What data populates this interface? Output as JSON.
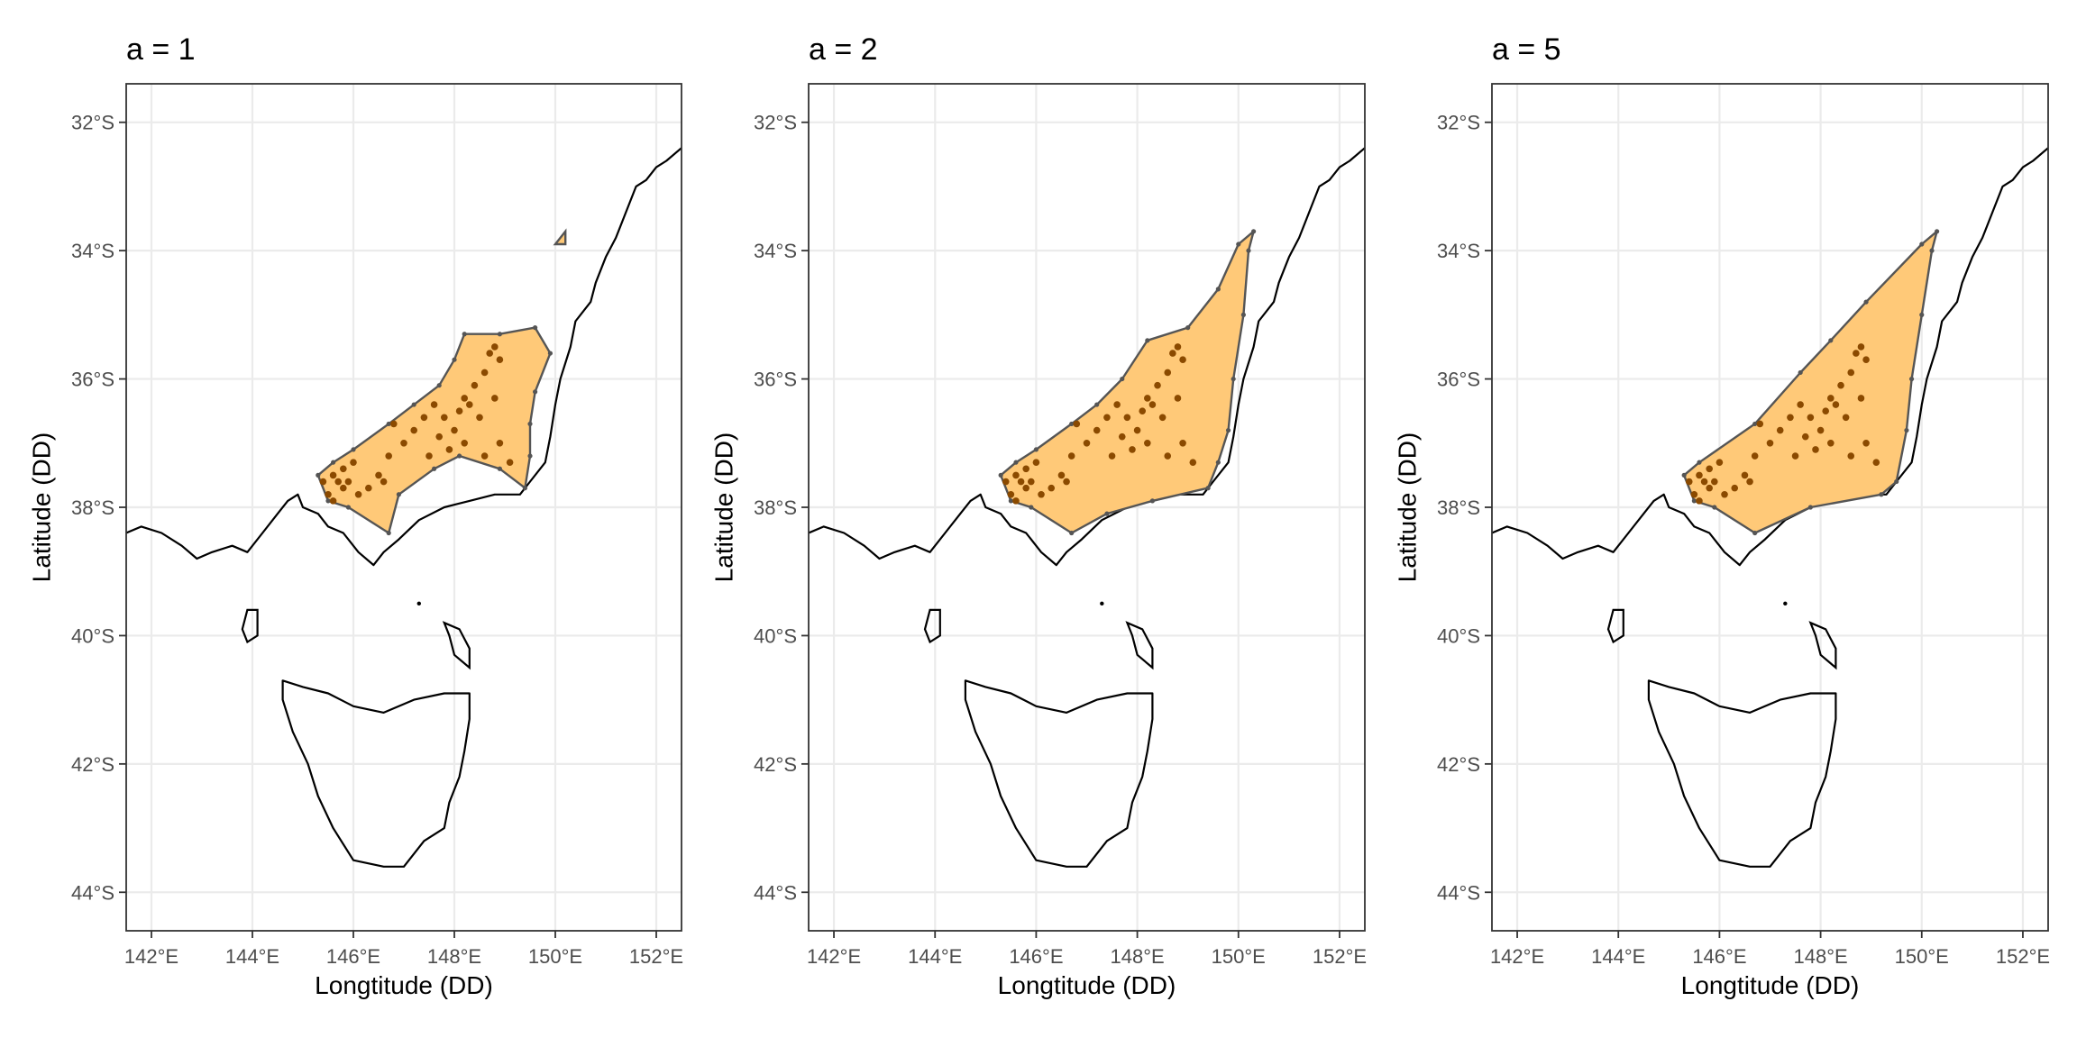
{
  "panels": [
    {
      "title": "a =  1",
      "alpha": 1,
      "ylabel": "Latitude (DD)",
      "xlabel": "Longtitude (DD)",
      "hull": [
        [
          145.3,
          -37.5
        ],
        [
          145.5,
          -37.9
        ],
        [
          145.9,
          -38.0
        ],
        [
          146.7,
          -38.4
        ],
        [
          146.9,
          -37.8
        ],
        [
          147.6,
          -37.4
        ],
        [
          148.1,
          -37.2
        ],
        [
          148.9,
          -37.4
        ],
        [
          149.4,
          -37.7
        ],
        [
          149.5,
          -37.2
        ],
        [
          149.5,
          -36.7
        ],
        [
          149.6,
          -36.2
        ],
        [
          149.9,
          -35.6
        ],
        [
          149.6,
          -35.2
        ],
        [
          148.9,
          -35.3
        ],
        [
          148.2,
          -35.3
        ],
        [
          148.0,
          -35.7
        ],
        [
          147.7,
          -36.1
        ],
        [
          147.2,
          -36.4
        ],
        [
          146.7,
          -36.7
        ],
        [
          146.0,
          -37.1
        ],
        [
          145.6,
          -37.3
        ]
      ],
      "islands": [
        [
          [
            150.0,
            -33.9
          ],
          [
            150.2,
            -33.7
          ],
          [
            150.2,
            -33.9
          ]
        ]
      ]
    },
    {
      "title": "a =  2",
      "alpha": 2,
      "ylabel": "Latitude (DD)",
      "xlabel": "Longtitude (DD)",
      "hull": [
        [
          145.3,
          -37.5
        ],
        [
          145.5,
          -37.9
        ],
        [
          145.9,
          -38.0
        ],
        [
          146.7,
          -38.4
        ],
        [
          147.4,
          -38.1
        ],
        [
          148.3,
          -37.9
        ],
        [
          149.4,
          -37.7
        ],
        [
          149.6,
          -37.3
        ],
        [
          149.8,
          -36.8
        ],
        [
          149.9,
          -36.0
        ],
        [
          150.1,
          -35.0
        ],
        [
          150.2,
          -34.0
        ],
        [
          150.3,
          -33.7
        ],
        [
          150.0,
          -33.9
        ],
        [
          149.6,
          -34.6
        ],
        [
          149.0,
          -35.2
        ],
        [
          148.2,
          -35.4
        ],
        [
          147.7,
          -36.0
        ],
        [
          147.2,
          -36.4
        ],
        [
          146.7,
          -36.7
        ],
        [
          146.0,
          -37.1
        ],
        [
          145.6,
          -37.3
        ]
      ],
      "islands": []
    },
    {
      "title": "a =  5",
      "alpha": 5,
      "ylabel": "Latitude (DD)",
      "xlabel": "Longtitude (DD)",
      "hull": [
        [
          145.3,
          -37.5
        ],
        [
          145.5,
          -37.9
        ],
        [
          145.9,
          -38.0
        ],
        [
          146.7,
          -38.4
        ],
        [
          147.8,
          -38.0
        ],
        [
          149.2,
          -37.8
        ],
        [
          149.5,
          -37.6
        ],
        [
          149.7,
          -36.8
        ],
        [
          149.8,
          -36.0
        ],
        [
          150.0,
          -35.0
        ],
        [
          150.2,
          -34.0
        ],
        [
          150.3,
          -33.7
        ],
        [
          150.0,
          -33.9
        ],
        [
          148.9,
          -34.8
        ],
        [
          148.2,
          -35.4
        ],
        [
          147.6,
          -35.9
        ],
        [
          146.7,
          -36.7
        ],
        [
          145.6,
          -37.3
        ]
      ],
      "islands": []
    }
  ],
  "axes": {
    "xlim": [
      141.5,
      152.5
    ],
    "ylim": [
      -44.6,
      -31.4
    ],
    "xticks": [
      142,
      144,
      146,
      148,
      150,
      152
    ],
    "xtick_labels": [
      "142°E",
      "144°E",
      "146°E",
      "148°E",
      "150°E",
      "152°E"
    ],
    "yticks": [
      -32,
      -34,
      -36,
      -38,
      -40,
      -42,
      -44
    ],
    "ytick_labels": [
      "32°S",
      "34°S",
      "36°S",
      "38°S",
      "40°S",
      "42°S",
      "44°S"
    ]
  },
  "colors": {
    "hull_fill": "#FFC978",
    "hull_stroke": "#555555",
    "points": "#8B4A00",
    "coast": "#000000",
    "grid": "#EBEBEB",
    "panel_border": "#333333",
    "text": "#000000",
    "tick_text": "#4D4D4D"
  },
  "map_features": {
    "mainland_coast": [
      [
        141.5,
        -38.4
      ],
      [
        141.8,
        -38.3
      ],
      [
        142.2,
        -38.4
      ],
      [
        142.6,
        -38.6
      ],
      [
        142.9,
        -38.8
      ],
      [
        143.2,
        -38.7
      ],
      [
        143.6,
        -38.6
      ],
      [
        143.9,
        -38.7
      ],
      [
        144.2,
        -38.4
      ],
      [
        144.5,
        -38.1
      ],
      [
        144.7,
        -37.9
      ],
      [
        144.9,
        -37.8
      ],
      [
        145.0,
        -38.0
      ],
      [
        145.3,
        -38.1
      ],
      [
        145.5,
        -38.3
      ],
      [
        145.8,
        -38.4
      ],
      [
        146.1,
        -38.7
      ],
      [
        146.4,
        -38.9
      ],
      [
        146.6,
        -38.7
      ],
      [
        146.9,
        -38.5
      ],
      [
        147.3,
        -38.2
      ],
      [
        147.8,
        -38.0
      ],
      [
        148.3,
        -37.9
      ],
      [
        148.8,
        -37.8
      ],
      [
        149.3,
        -37.8
      ],
      [
        149.5,
        -37.6
      ],
      [
        149.8,
        -37.3
      ],
      [
        149.9,
        -36.9
      ],
      [
        150.0,
        -36.4
      ],
      [
        150.1,
        -36.0
      ],
      [
        150.3,
        -35.5
      ],
      [
        150.4,
        -35.1
      ],
      [
        150.7,
        -34.8
      ],
      [
        150.8,
        -34.5
      ],
      [
        151.0,
        -34.1
      ],
      [
        151.2,
        -33.8
      ],
      [
        151.4,
        -33.4
      ],
      [
        151.6,
        -33.0
      ],
      [
        151.8,
        -32.9
      ],
      [
        152.0,
        -32.7
      ],
      [
        152.2,
        -32.6
      ],
      [
        152.5,
        -32.4
      ]
    ],
    "tasmania": [
      [
        144.6,
        -40.7
      ],
      [
        145.0,
        -40.8
      ],
      [
        145.5,
        -40.9
      ],
      [
        146.0,
        -41.1
      ],
      [
        146.6,
        -41.2
      ],
      [
        147.2,
        -41.0
      ],
      [
        147.8,
        -40.9
      ],
      [
        148.3,
        -40.9
      ],
      [
        148.3,
        -41.3
      ],
      [
        148.2,
        -41.8
      ],
      [
        148.1,
        -42.2
      ],
      [
        147.9,
        -42.6
      ],
      [
        147.8,
        -43.0
      ],
      [
        147.4,
        -43.2
      ],
      [
        147.0,
        -43.6
      ],
      [
        146.6,
        -43.6
      ],
      [
        146.0,
        -43.5
      ],
      [
        145.6,
        -43.0
      ],
      [
        145.3,
        -42.5
      ],
      [
        145.1,
        -42.0
      ],
      [
        144.8,
        -41.5
      ],
      [
        144.6,
        -41.0
      ]
    ],
    "king_island": [
      [
        143.9,
        -39.6
      ],
      [
        144.1,
        -39.6
      ],
      [
        144.1,
        -40.0
      ],
      [
        143.9,
        -40.1
      ],
      [
        143.8,
        -39.9
      ]
    ],
    "flinders_island": [
      [
        147.8,
        -39.8
      ],
      [
        148.1,
        -39.9
      ],
      [
        148.3,
        -40.2
      ],
      [
        148.3,
        -40.5
      ],
      [
        148.0,
        -40.3
      ],
      [
        147.9,
        -40.0
      ]
    ],
    "small_islet": [
      [
        147.3,
        -39.5
      ]
    ]
  },
  "occurrences": [
    [
      145.4,
      -37.6
    ],
    [
      145.5,
      -37.8
    ],
    [
      145.6,
      -37.5
    ],
    [
      145.7,
      -37.6
    ],
    [
      145.8,
      -37.7
    ],
    [
      145.9,
      -37.6
    ],
    [
      145.6,
      -37.9
    ],
    [
      145.8,
      -37.4
    ],
    [
      146.0,
      -37.3
    ],
    [
      146.1,
      -37.8
    ],
    [
      146.3,
      -37.7
    ],
    [
      146.5,
      -37.5
    ],
    [
      146.7,
      -37.2
    ],
    [
      146.8,
      -36.7
    ],
    [
      147.0,
      -37.0
    ],
    [
      147.2,
      -36.8
    ],
    [
      147.4,
      -36.6
    ],
    [
      147.5,
      -37.2
    ],
    [
      147.7,
      -36.9
    ],
    [
      147.8,
      -36.6
    ],
    [
      147.9,
      -37.1
    ],
    [
      148.0,
      -36.8
    ],
    [
      148.1,
      -36.5
    ],
    [
      148.2,
      -36.3
    ],
    [
      148.3,
      -36.4
    ],
    [
      148.4,
      -36.1
    ],
    [
      148.5,
      -36.6
    ],
    [
      148.6,
      -35.9
    ],
    [
      148.7,
      -35.6
    ],
    [
      148.8,
      -35.5
    ],
    [
      148.9,
      -35.7
    ],
    [
      148.8,
      -36.3
    ],
    [
      148.9,
      -37.0
    ],
    [
      149.1,
      -37.3
    ],
    [
      148.6,
      -37.2
    ],
    [
      148.2,
      -37.0
    ],
    [
      147.6,
      -36.4
    ],
    [
      146.6,
      -37.6
    ]
  ]
}
